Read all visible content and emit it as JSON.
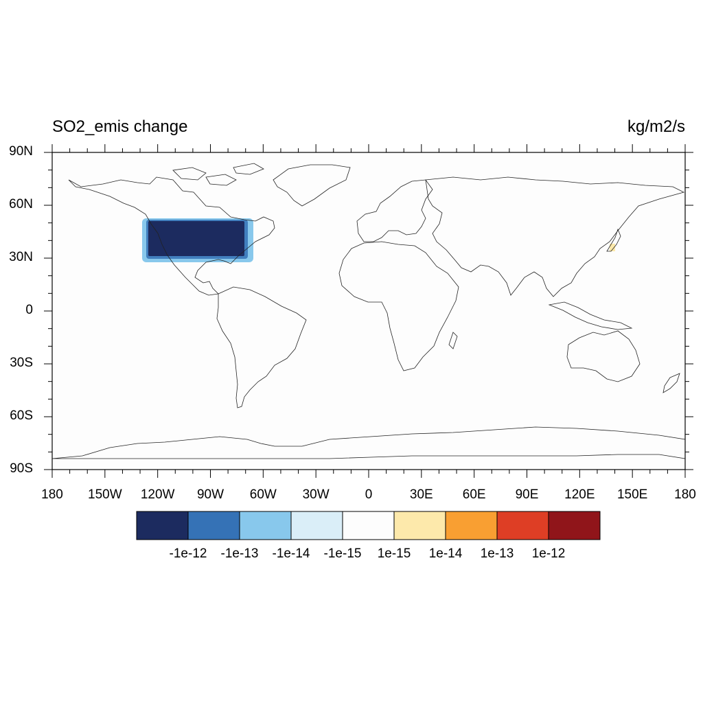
{
  "title": "SO2_emis change",
  "units": "kg/m2/s",
  "lat_labels": [
    "90N",
    "60N",
    "30N",
    "0",
    "30S",
    "60S",
    "90S"
  ],
  "lon_labels": [
    "180",
    "150W",
    "120W",
    "90W",
    "60W",
    "30W",
    "0",
    "30E",
    "60E",
    "90E",
    "120E",
    "150E",
    "180"
  ],
  "colorbar": {
    "colors": [
      "#1c2b5f",
      "#3572b6",
      "#88c8ec",
      "#daeef8",
      "#fdfdfd",
      "#fde9ab",
      "#f99f32",
      "#de3e25",
      "#90151a"
    ],
    "labels": [
      "-1e-12",
      "-1e-13",
      "-1e-14",
      "-1e-15",
      "1e-15",
      "1e-14",
      "1e-13",
      "1e-12"
    ]
  },
  "field_regions": [
    {
      "name": "north-america-decrease",
      "level": "-1e-12 and below",
      "color": "#1c2b5f",
      "edge_color": "#88c8ec",
      "lon": [
        -128,
        -67
      ],
      "lat": [
        28,
        52
      ]
    },
    {
      "name": "japan-increase",
      "level": "1e-15 to 1e-14",
      "color": "#fde9ab",
      "lon": [
        138,
        140
      ],
      "lat": [
        34,
        36
      ]
    }
  ]
}
